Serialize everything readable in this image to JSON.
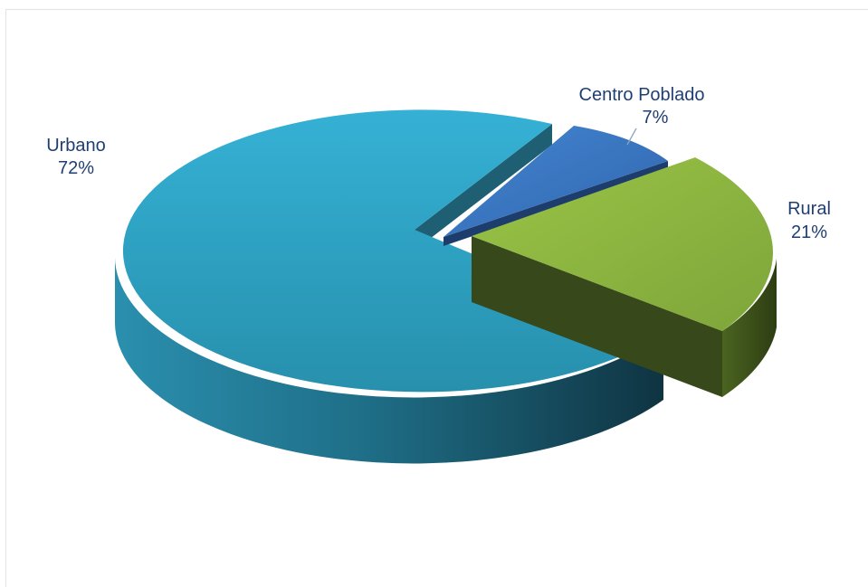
{
  "chart_data": {
    "type": "pie",
    "style": "3d-exploded",
    "title": "",
    "slices": [
      {
        "label": "Urbano",
        "value": 72,
        "value_label": "72%",
        "color": "#31a9cc"
      },
      {
        "label": "Centro Poblado",
        "value": 7,
        "value_label": "7%",
        "color": "#3a7ac6"
      },
      {
        "label": "Rural",
        "value": 21,
        "value_label": "21%",
        "color": "#8fb43e"
      }
    ]
  }
}
